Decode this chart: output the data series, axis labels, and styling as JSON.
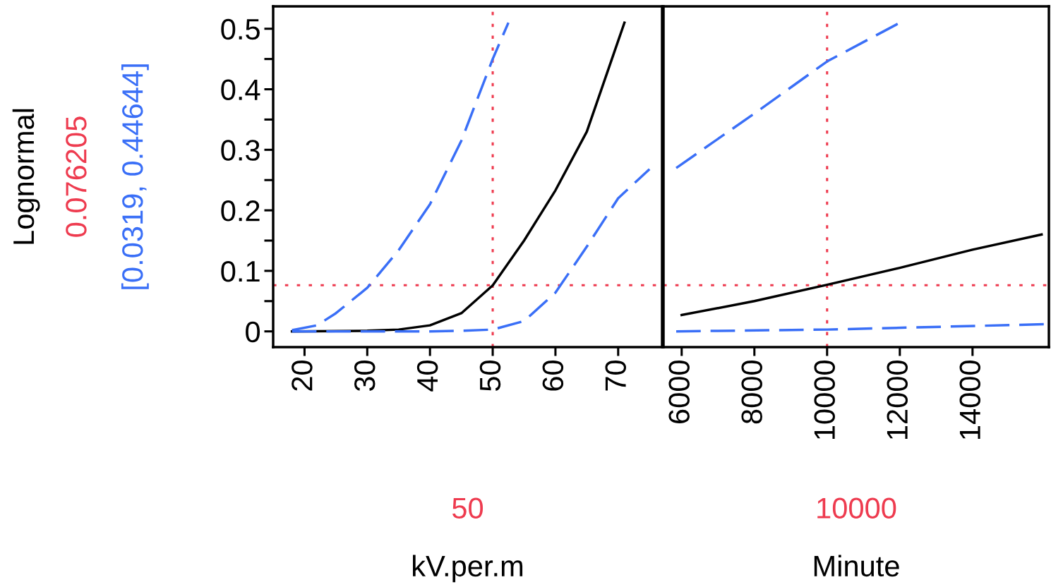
{
  "chart_data": [
    {
      "type": "line",
      "ylabel": "Lognormal",
      "xlabel": "kV.per.m",
      "annotations": [
        "0.076205",
        "[0.0319, 0.44644]",
        "50"
      ],
      "xlim": [
        15,
        77
      ],
      "xticks": [
        20,
        30,
        40,
        50,
        60,
        70
      ],
      "ylim": [
        -0.026,
        0.537
      ],
      "yticks": [
        0,
        {
          "value": 0.05,
          "label": null
        },
        0.1,
        {
          "value": 0.15,
          "label": null
        },
        0.2,
        {
          "value": 0.25,
          "label": null
        },
        0.3,
        {
          "value": 0.35,
          "label": null
        },
        0.4,
        {
          "value": 0.45,
          "label": null
        },
        0.5
      ],
      "grid": false,
      "legend": false,
      "tick_labels": "xy",
      "series": [
        {
          "color": "#000000",
          "line_style": "solid",
          "x": [
            18,
            30,
            35,
            40,
            45,
            50,
            55,
            60,
            65,
            70,
            71
          ],
          "values": [
            0,
            0.001,
            0.003,
            0.01,
            0.03,
            0.076,
            0.15,
            0.233,
            0.33,
            0.48,
            0.51
          ]
        },
        {
          "color": "#3a6ff7",
          "line_style": "dashed",
          "x": [
            18,
            22,
            25,
            30,
            35,
            40,
            45,
            50,
            52.5
          ],
          "values": [
            0.002,
            0.01,
            0.03,
            0.072,
            0.134,
            0.21,
            0.315,
            0.45,
            0.51
          ]
        },
        {
          "color": "#3a6ff7",
          "line_style": "dashed",
          "x": [
            18,
            40,
            45,
            50,
            55,
            60,
            65,
            70,
            75
          ],
          "values": [
            0,
            0,
            0.001,
            0.003,
            0.017,
            0.064,
            0.14,
            0.22,
            0.268
          ]
        }
      ],
      "ref_lines": [
        {
          "axis": "x",
          "value": 50,
          "color": "#ee3b4f",
          "line_style": "dotted"
        },
        {
          "axis": "y",
          "value": 0.076205,
          "color": "#ee3b4f",
          "line_style": "dotted"
        }
      ]
    },
    {
      "type": "line",
      "xlabel": "Minute",
      "annotations": [
        "10000"
      ],
      "xlim": [
        5500,
        16100
      ],
      "xticks": [
        6000,
        8000,
        10000,
        12000,
        14000
      ],
      "ylim": [
        -0.026,
        0.537
      ],
      "grid": false,
      "legend": false,
      "tick_labels": "x",
      "series": [
        {
          "color": "#000000",
          "line_style": "solid",
          "x": [
            6000,
            8000,
            10000,
            12000,
            14000,
            15900
          ],
          "values": [
            0.027,
            0.05,
            0.077,
            0.105,
            0.135,
            0.16
          ]
        },
        {
          "color": "#3a6ff7",
          "line_style": "dashed",
          "x": [
            5850,
            8000,
            10000,
            12000
          ],
          "values": [
            0.27,
            0.36,
            0.446,
            0.51
          ]
        },
        {
          "color": "#3a6ff7",
          "line_style": "dashed",
          "x": [
            5850,
            10000,
            16100
          ],
          "values": [
            0,
            0.003,
            0.012
          ]
        }
      ],
      "ref_lines": [
        {
          "axis": "x",
          "value": 10000,
          "color": "#ee3b4f",
          "line_style": "dotted"
        },
        {
          "axis": "y",
          "value": 0.076205,
          "color": "#ee3b4f",
          "line_style": "dotted"
        }
      ]
    }
  ]
}
